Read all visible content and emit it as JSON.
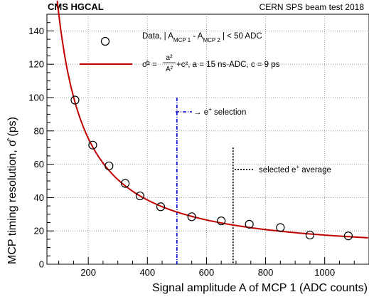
{
  "header": {
    "left_label": "CMS HGCAL",
    "right_label": "CERN SPS beam test 2018"
  },
  "chart_data": {
    "type": "scatter",
    "xlabel": "Signal amplitude A of MCP 1 (ADC counts)",
    "ylabel_text": "MCP timing resolution,",
    "ylabel_symbol": "σ̂",
    "ylabel_unit": "(ps)",
    "xlim": [
      60,
      1150
    ],
    "ylim": [
      0,
      150
    ],
    "grid": true,
    "x_ticks": [
      200,
      400,
      600,
      800,
      1000
    ],
    "y_ticks": [
      0,
      20,
      40,
      60,
      80,
      100,
      120,
      140
    ],
    "series": [
      {
        "name": "Data, | A_MCP 1 - A_MCP 2 | < 50 ADC",
        "marker": "open-circle",
        "x": [
          155,
          215,
          270,
          325,
          375,
          445,
          550,
          650,
          745,
          850,
          950,
          1080
        ],
        "y": [
          98.5,
          71.5,
          59,
          48.5,
          41,
          34.5,
          28.5,
          26,
          24,
          22,
          17.5,
          17
        ]
      }
    ],
    "fit": {
      "name": "σ̂² = a²/A² + c², a = 15 ns·ADC, c = 9 ps",
      "a_ns_adc": 15,
      "c_ps": 9,
      "x_start": 95,
      "color": "#c00000"
    },
    "lines": [
      {
        "name": "→ e+ selection",
        "x": 500,
        "style": "dash-dot",
        "color": "#0000cc"
      },
      {
        "name": "selected e+ average",
        "x": 690,
        "style": "dotted",
        "color": "#000000"
      }
    ]
  },
  "legend": {
    "data_prefix": "Data, | A",
    "data_sub1": "MCP 1",
    "data_mid": " - A",
    "data_sub2": "MCP 2",
    "data_suffix": " | < 50 ADC",
    "fit_params": "+c², a = 15 ns·ADC, c = 9 ps",
    "fit_lhs": "σ̂² =",
    "fit_num": "a²",
    "fit_den": "A²",
    "sel_text": "→ e",
    "sel_sup": "+",
    "sel_suffix": " selection",
    "avg_text": "selected e",
    "avg_sup": "+",
    "avg_suffix": " average"
  },
  "colors": {
    "fit_curve": "#c00000",
    "selection_line": "#0000cc",
    "average_line": "#000000",
    "grid": "#888888"
  }
}
